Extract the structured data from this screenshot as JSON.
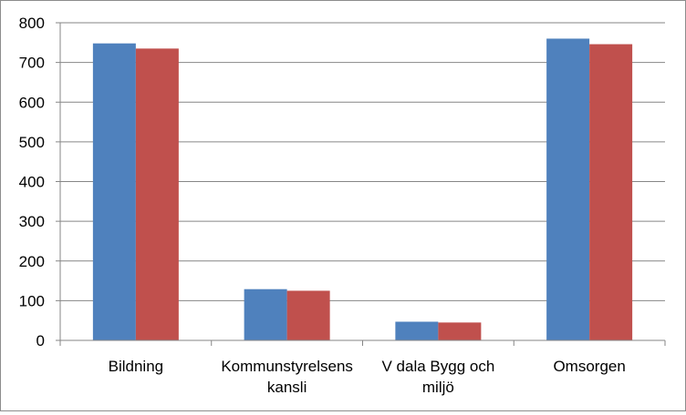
{
  "chart_data": {
    "type": "bar",
    "title": "",
    "xlabel": "",
    "ylabel": "",
    "ylim": [
      0,
      800
    ],
    "yticks": [
      0,
      100,
      200,
      300,
      400,
      500,
      600,
      700,
      800
    ],
    "grid": true,
    "legend": "none",
    "categories": [
      [
        "Bildning"
      ],
      [
        "Kommunstyrelsens",
        "kansli"
      ],
      [
        "V dala Bygg och",
        "miljö"
      ],
      [
        "Omsorgen"
      ]
    ],
    "series": [
      {
        "color": "#4f81bd",
        "values": [
          748,
          129,
          47,
          760
        ]
      },
      {
        "color": "#c0504d",
        "values": [
          735,
          125,
          45,
          746
        ]
      }
    ]
  }
}
